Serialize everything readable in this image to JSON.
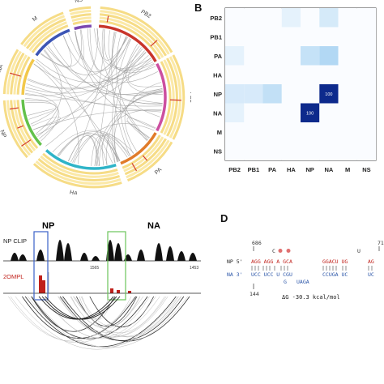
{
  "panel_letters": {
    "b": "B",
    "d": "D"
  },
  "circos": {
    "segments": [
      {
        "name": "PB2",
        "color": "#c8352b",
        "a0": 4,
        "a1": 60
      },
      {
        "name": "PB1",
        "color": "#cc4fa0",
        "a0": 62,
        "a1": 118
      },
      {
        "name": "PA",
        "color": "#e07b2a",
        "a0": 120,
        "a1": 158
      },
      {
        "name": "HA",
        "color": "#2fb4c8",
        "a0": 162,
        "a1": 222
      },
      {
        "name": "NP",
        "color": "#63c14a",
        "a0": 228,
        "a1": 268
      },
      {
        "name": "NA",
        "color": "#f2c84b",
        "a0": 272,
        "a1": 302
      },
      {
        "name": "M",
        "color": "#3c55b5",
        "a0": 306,
        "a1": 340
      },
      {
        "name": "NS",
        "color": "#7b48b0",
        "a0": 344,
        "a1": 358
      }
    ]
  },
  "chart_data": {
    "type": "heatmap",
    "rows": [
      "PB2",
      "PB1",
      "PA",
      "HA",
      "NP",
      "NA",
      "M",
      "NS"
    ],
    "columns": [
      "PB2",
      "PB1",
      "PA",
      "HA",
      "NP",
      "NA",
      "M",
      "NS"
    ],
    "values": [
      [
        0,
        0,
        0,
        13,
        0,
        23,
        0,
        0
      ],
      [
        0,
        0,
        0,
        0,
        0,
        0,
        0,
        0
      ],
      [
        13,
        0,
        0,
        0,
        33,
        45,
        0,
        0
      ],
      [
        0,
        0,
        0,
        0,
        0,
        0,
        0,
        0
      ],
      [
        22,
        22,
        35,
        0,
        0,
        100,
        0,
        0
      ],
      [
        13,
        0,
        0,
        0,
        100,
        0,
        0,
        0
      ],
      [
        0,
        0,
        0,
        0,
        0,
        0,
        0,
        0
      ],
      [
        0,
        0,
        0,
        0,
        0,
        0,
        0,
        0
      ]
    ],
    "labeled_cells": [
      {
        "row": "NP",
        "col": "NA",
        "label": "100"
      },
      {
        "row": "NA",
        "col": "NP",
        "label": "100"
      }
    ]
  },
  "tracks": {
    "np_label": "NP",
    "na_label": "NA",
    "clip_label": "NP CLIP",
    "ompl_label": "2OMPL",
    "tick_left": "1565",
    "tick_right": "1453"
  },
  "duplex": {
    "top_left_num": "686",
    "top_right_num": "71",
    "bottom_left_num": "144",
    "np_prefix": "NP 5'",
    "na_prefix": "NA 3'",
    "np_bulge_1": "C",
    "np_bulge_2": "U",
    "np_seq_1": "AGG AGG A GCA",
    "np_seq_2": "GGACU UG",
    "np_seq_3": "AG",
    "na_seq_1": "UCC UCC U CGU",
    "na_seq_2": "CCUGA UC",
    "na_seq_3": "UC",
    "na_loop_1": "G",
    "na_loop_2": "UAGA",
    "energy": "ΔG -30.3 kcal/mol"
  }
}
